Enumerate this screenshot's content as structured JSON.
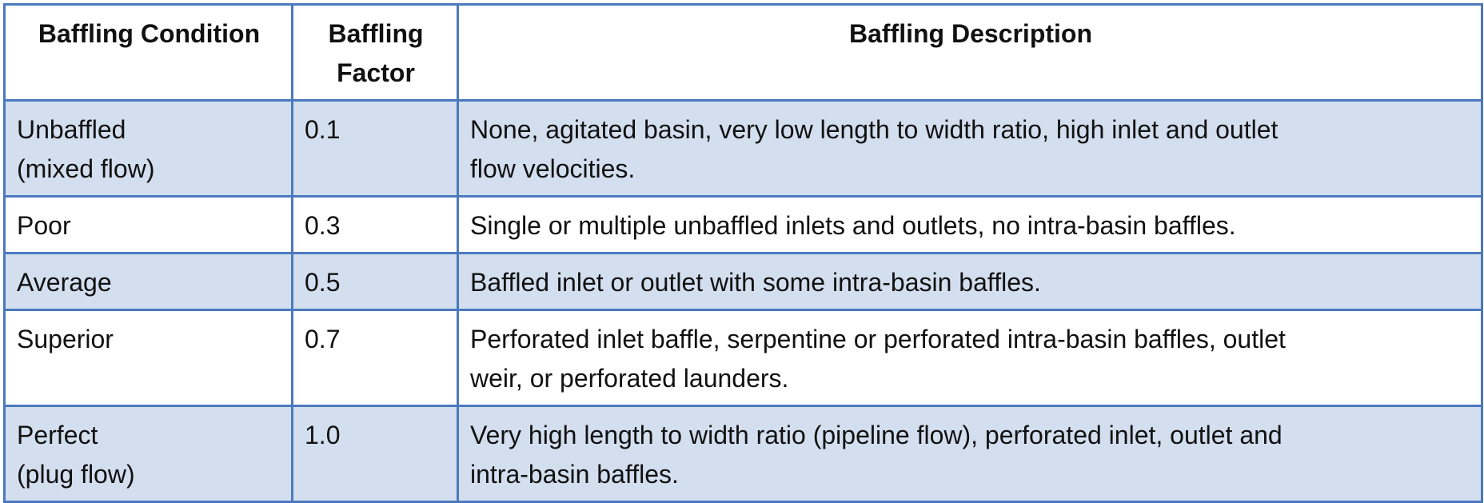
{
  "table": {
    "headers": [
      "Baffling Condition",
      "Baffling\nFactor",
      "Baffling Description"
    ],
    "rows": [
      {
        "condition": "Unbaffled\n(mixed flow)",
        "factor": "0.1",
        "description": "None, agitated basin, very low length to width ratio, high inlet and outlet\nflow velocities."
      },
      {
        "condition": "Poor",
        "factor": "0.3",
        "description": "Single or multiple unbaffled inlets and outlets, no intra-basin baffles."
      },
      {
        "condition": "Average",
        "factor": "0.5",
        "description": "Baffled inlet or outlet with some intra-basin baffles."
      },
      {
        "condition": "Superior",
        "factor": "0.7",
        "description": "Perforated inlet baffle, serpentine or perforated intra-basin baffles, outlet\nweir, or perforated launders."
      },
      {
        "condition": "Perfect\n(plug flow)",
        "factor": "1.0",
        "description": "Very high length to width ratio (pipeline flow), perforated inlet, outlet and\nintra-basin baffles."
      }
    ]
  },
  "colors": {
    "border": "#4a79be",
    "shaded_row": "#d3dfef",
    "plain_row": "#ffffff",
    "text": "#111111"
  }
}
